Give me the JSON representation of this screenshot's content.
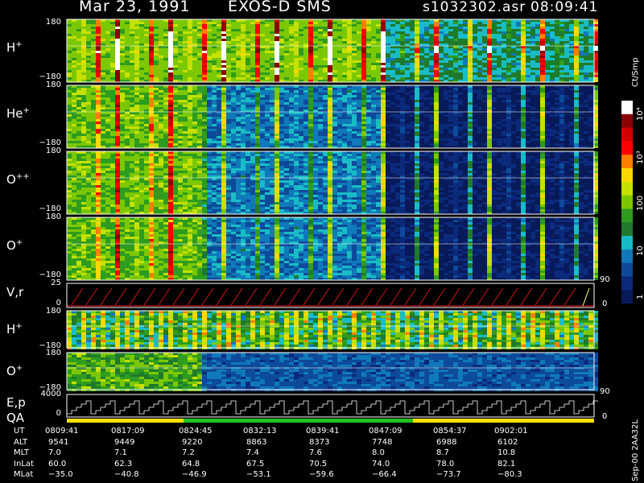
{
  "header": {
    "date": "Mar 23, 1991",
    "mission": "EXOS-D SMS",
    "file": "s1032302.asr",
    "time": "08:09:41"
  },
  "colorbar": {
    "unit_label": "Ct/Smp",
    "ticks": [
      "10⁴",
      "10³",
      "100",
      "10",
      "1"
    ],
    "colors": [
      "#ffffff",
      "#8b0000",
      "#d10000",
      "#ff0000",
      "#ff7f00",
      "#ffd800",
      "#c6e000",
      "#7cc800",
      "#2e9c1e",
      "#1f7a2c",
      "#19bcc6",
      "#0f79b9",
      "#0d4a9a",
      "#0b2a7c",
      "#081a5a"
    ]
  },
  "vertical_note": "Sep-00 2AA32L",
  "chart_data": {
    "type": "heatmap",
    "x_axis": "UT",
    "x_ticks": [
      "0809:41",
      "0817:09",
      "0824:45",
      "0832:13",
      "0839:41",
      "0847:09",
      "0854:37",
      "0902:01"
    ],
    "panels": [
      {
        "label": "H",
        "sup": "+",
        "ymax": "180",
        "ymin": "−180"
      },
      {
        "label": "He",
        "sup": "+",
        "ymax": "180",
        "ymin": "−180"
      },
      {
        "label": "O",
        "sup": "++",
        "ymax": "180",
        "ymin": "−180"
      },
      {
        "label": "O",
        "sup": "+",
        "ymax": "180",
        "ymin": "−180",
        "right_tick": "90"
      },
      {
        "label": "V,r",
        "sup": "",
        "ymax": "25",
        "ymin": "0",
        "right_tick": "0"
      },
      {
        "label": "H",
        "sup": "+",
        "ymax": "180",
        "ymin": "−180"
      },
      {
        "label": "O",
        "sup": "+",
        "ymax": "180",
        "ymin": "−180",
        "right_tick": "90"
      },
      {
        "label": "E,p",
        "label2": "QA",
        "ymax": "4000",
        "ymin": "0",
        "right_tick": "0"
      }
    ],
    "ephemeris": {
      "rows": [
        {
          "name": "UT",
          "values": [
            "0809:41",
            "0817:09",
            "0824:45",
            "0832:13",
            "0839:41",
            "0847:09",
            "0854:37",
            "0902:01"
          ]
        },
        {
          "name": "ALT",
          "values": [
            "9541",
            "9449",
            "9220",
            "8863",
            "8373",
            "7748",
            "6988",
            "6102"
          ]
        },
        {
          "name": "MLT",
          "values": [
            "7.0",
            "7.1",
            "7.2",
            "7.4",
            "7.6",
            "8.0",
            "8.7",
            "10.8"
          ]
        },
        {
          "name": "InLat",
          "values": [
            "60.0",
            "62.3",
            "64.8",
            "67.5",
            "70.5",
            "74.0",
            "78.0",
            "82.1"
          ]
        },
        {
          "name": "MLat",
          "values": [
            "−35.0",
            "−40.8",
            "−46.9",
            "−53.1",
            "−59.6",
            "−66.4",
            "−73.7",
            "−80.3"
          ]
        }
      ]
    }
  }
}
